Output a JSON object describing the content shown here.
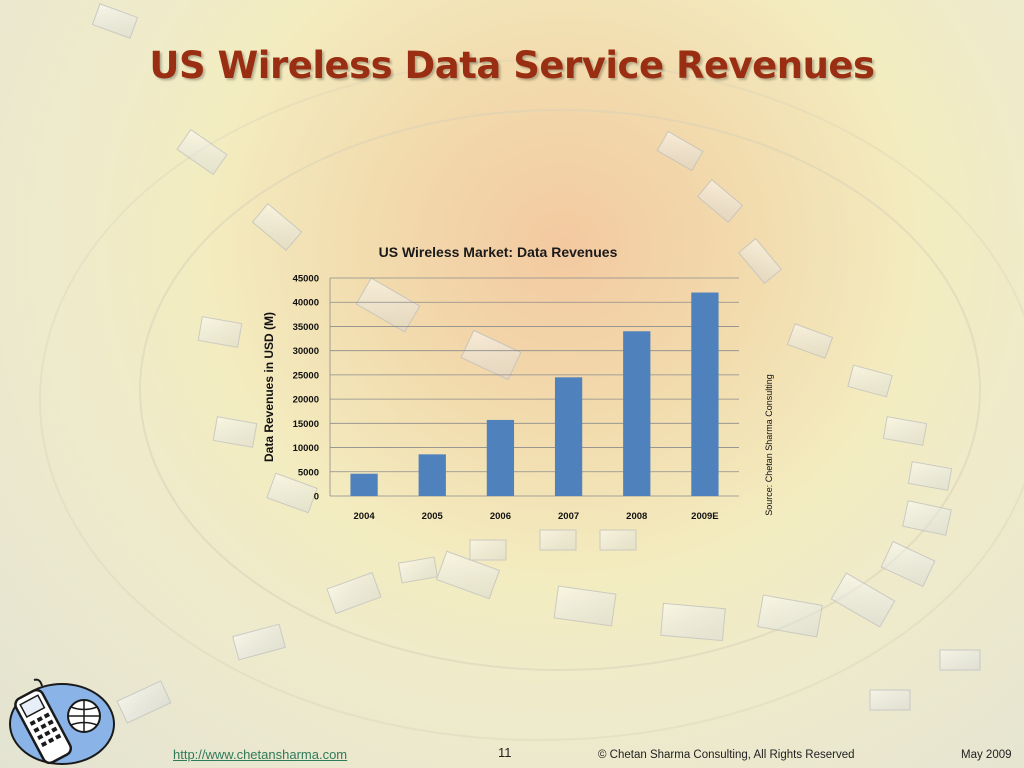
{
  "slide": {
    "title": "US Wireless Data Service Revenues"
  },
  "footer": {
    "url": "http://www.chetansharma.com",
    "page_number": "11",
    "copyright": "© Chetan Sharma Consulting, All Rights Reserved",
    "date": "May 2009"
  },
  "colors": {
    "title": "#9a2e12",
    "bar": "#4f81bd",
    "gridline": "#8c8c8c"
  },
  "chart_data": {
    "type": "bar",
    "title": "US Wireless Market: Data Revenues",
    "ylabel": "Data Revenues in USD (M)",
    "xlabel": "",
    "side_note": "Source: Chetan Sharma Consulting",
    "categories": [
      "2004",
      "2005",
      "2006",
      "2007",
      "2008",
      "2009E"
    ],
    "values": [
      4600,
      8600,
      15700,
      24500,
      34000,
      42000
    ],
    "ylim": [
      0,
      45000
    ],
    "yticks": [
      0,
      5000,
      10000,
      15000,
      20000,
      25000,
      30000,
      35000,
      40000,
      45000
    ],
    "grid": true,
    "legend": "none"
  }
}
